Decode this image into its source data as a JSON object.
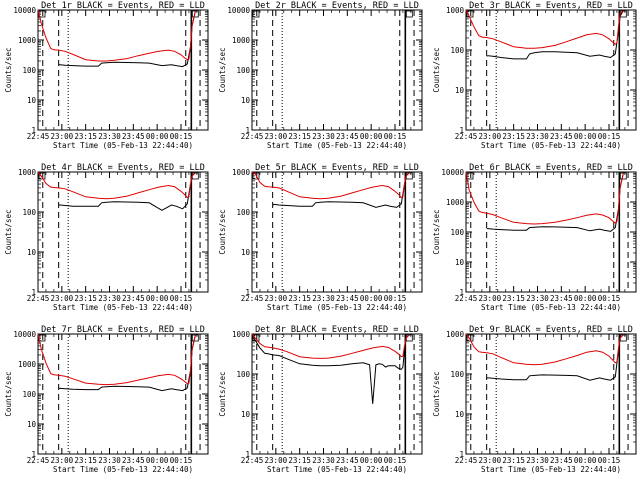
{
  "figure": {
    "x_tick_labels": [
      "22:45",
      "23:00",
      "23:15",
      "23:30",
      "23:45",
      "00:00",
      "00:15"
    ],
    "xlabel": "Start Time (05-Feb-13 22:44:40)",
    "ylabel": "Counts/sec",
    "series_colors": {
      "events": "#000000",
      "lld": "#e00000"
    },
    "background": "#ffffff"
  },
  "chart_data": [
    {
      "type": "line",
      "title": "Det 1r BLACK = Events, RED = LLD",
      "scale": "log",
      "yticks": [
        "1",
        "10",
        "100",
        "1000",
        "10000"
      ],
      "ylim": [
        1,
        10000
      ],
      "xlim_minutes": [
        0,
        100
      ],
      "series": [
        {
          "name": "Events",
          "x": [
            13,
            14,
            17,
            22,
            30,
            38,
            40,
            43,
            48,
            56,
            63,
            70,
            78,
            84,
            87,
            91,
            94,
            96,
            97,
            99
          ],
          "y": [
            150,
            150,
            145,
            140,
            135,
            135,
            170,
            175,
            180,
            178,
            175,
            170,
            140,
            150,
            140,
            130,
            160,
            600,
            3000,
            9000
          ]
        },
        {
          "name": "LLD",
          "x": [
            0,
            2,
            5,
            8,
            10,
            13,
            17,
            22,
            30,
            38,
            43,
            48,
            56,
            63,
            70,
            76,
            82,
            86,
            90,
            92,
            94,
            95,
            96,
            97,
            99
          ],
          "y": [
            10000,
            3600,
            1200,
            520,
            470,
            460,
            420,
            330,
            220,
            200,
            200,
            210,
            240,
            300,
            360,
            420,
            460,
            420,
            320,
            260,
            220,
            230,
            600,
            3000,
            9000
          ]
        }
      ]
    },
    {
      "type": "line",
      "title": "Det 2r BLACK = Events, RED = LLD",
      "scale": "log",
      "yticks": [
        "1",
        "10",
        "100",
        "1000",
        "10000"
      ],
      "ylim": [
        1,
        10000
      ],
      "xlim_minutes": [
        0,
        100
      ],
      "series": []
    },
    {
      "type": "line",
      "title": "Det 3r BLACK = Events, RED = LLD",
      "scale": "log",
      "yticks": [
        "1",
        "10",
        "100",
        "1000"
      ],
      "ylim": [
        1,
        1000
      ],
      "xlim_minutes": [
        0,
        100
      ],
      "series": [
        {
          "name": "Events",
          "x": [
            13,
            14,
            17,
            22,
            30,
            38,
            40,
            43,
            48,
            56,
            63,
            70,
            78,
            84,
            87,
            91,
            94,
            96,
            97,
            99
          ],
          "y": [
            70,
            72,
            70,
            65,
            60,
            60,
            80,
            85,
            90,
            90,
            88,
            85,
            70,
            75,
            70,
            65,
            80,
            300,
            700,
            950
          ]
        },
        {
          "name": "LLD",
          "x": [
            0,
            2,
            5,
            8,
            10,
            13,
            17,
            22,
            30,
            38,
            43,
            48,
            56,
            63,
            70,
            76,
            82,
            86,
            90,
            92,
            94,
            95,
            96,
            97,
            99
          ],
          "y": [
            1000,
            700,
            380,
            230,
            210,
            205,
            190,
            160,
            120,
            110,
            110,
            115,
            130,
            160,
            200,
            240,
            260,
            240,
            190,
            160,
            140,
            150,
            400,
            800,
            950
          ]
        }
      ]
    },
    {
      "type": "line",
      "title": "Det 4r BLACK = Events, RED = LLD",
      "scale": "log",
      "yticks": [
        "1",
        "10",
        "100",
        "1000"
      ],
      "ylim": [
        1,
        1000
      ],
      "xlim_minutes": [
        0,
        100
      ],
      "series": [
        {
          "name": "Events",
          "x": [
            13,
            14,
            17,
            22,
            30,
            38,
            40,
            43,
            48,
            56,
            63,
            70,
            78,
            84,
            87,
            91,
            94,
            96,
            97,
            99
          ],
          "y": [
            150,
            150,
            145,
            140,
            140,
            140,
            170,
            175,
            180,
            178,
            175,
            170,
            110,
            150,
            140,
            120,
            160,
            500,
            800,
            950
          ]
        },
        {
          "name": "LLD",
          "x": [
            0,
            2,
            5,
            8,
            10,
            13,
            17,
            22,
            30,
            38,
            43,
            48,
            56,
            63,
            70,
            76,
            82,
            86,
            90,
            92,
            94,
            95,
            96,
            97,
            99
          ],
          "y": [
            1000,
            800,
            520,
            420,
            410,
            400,
            380,
            320,
            240,
            220,
            215,
            220,
            250,
            300,
            360,
            420,
            460,
            430,
            330,
            280,
            230,
            240,
            500,
            800,
            950
          ]
        }
      ]
    },
    {
      "type": "line",
      "title": "Det 5r BLACK = Events, RED = LLD",
      "scale": "log",
      "yticks": [
        "1",
        "10",
        "100",
        "1000"
      ],
      "ylim": [
        1,
        1000
      ],
      "xlim_minutes": [
        0,
        100
      ],
      "series": [
        {
          "name": "Events",
          "x": [
            13,
            14,
            17,
            22,
            30,
            38,
            40,
            43,
            48,
            56,
            63,
            70,
            78,
            84,
            87,
            91,
            94,
            96,
            97,
            99
          ],
          "y": [
            150,
            155,
            150,
            145,
            140,
            140,
            170,
            175,
            180,
            178,
            175,
            170,
            130,
            150,
            140,
            130,
            160,
            500,
            800,
            950
          ]
        },
        {
          "name": "LLD",
          "x": [
            0,
            2,
            5,
            8,
            10,
            13,
            17,
            22,
            30,
            38,
            43,
            48,
            56,
            63,
            70,
            76,
            82,
            86,
            90,
            92,
            94,
            95,
            96,
            97,
            99
          ],
          "y": [
            1000,
            900,
            550,
            440,
            430,
            420,
            400,
            330,
            240,
            220,
            215,
            220,
            250,
            300,
            360,
            420,
            460,
            430,
            330,
            280,
            230,
            240,
            500,
            800,
            950
          ]
        }
      ]
    },
    {
      "type": "line",
      "title": "Det 6r BLACK = Events, RED = LLD",
      "scale": "log",
      "yticks": [
        "1",
        "10",
        "100",
        "1000",
        "10000"
      ],
      "ylim": [
        1,
        10000
      ],
      "xlim_minutes": [
        0,
        100
      ],
      "series": [
        {
          "name": "Events",
          "x": [
            13,
            14,
            17,
            22,
            30,
            38,
            40,
            43,
            48,
            56,
            63,
            70,
            78,
            84,
            87,
            91,
            94,
            96,
            97,
            99
          ],
          "y": [
            130,
            130,
            125,
            120,
            115,
            115,
            140,
            145,
            150,
            148,
            145,
            140,
            110,
            125,
            115,
            105,
            140,
            600,
            3000,
            9000
          ]
        },
        {
          "name": "LLD",
          "x": [
            0,
            2,
            5,
            8,
            10,
            13,
            17,
            22,
            30,
            38,
            43,
            48,
            56,
            63,
            70,
            76,
            82,
            86,
            90,
            92,
            94,
            95,
            96,
            97,
            99
          ],
          "y": [
            10000,
            2500,
            1000,
            500,
            450,
            420,
            380,
            300,
            210,
            190,
            185,
            190,
            210,
            250,
            300,
            360,
            400,
            370,
            300,
            240,
            200,
            220,
            600,
            3000,
            9000
          ]
        }
      ]
    },
    {
      "type": "line",
      "title": "Det 7r BLACK = Events, RED = LLD",
      "scale": "log",
      "yticks": [
        "1",
        "10",
        "100",
        "1000",
        "10000"
      ],
      "ylim": [
        1,
        10000
      ],
      "xlim_minutes": [
        0,
        100
      ],
      "series": [
        {
          "name": "Events",
          "x": [
            13,
            14,
            17,
            22,
            30,
            38,
            40,
            43,
            48,
            56,
            63,
            70,
            78,
            84,
            87,
            91,
            94,
            96,
            97,
            99
          ],
          "y": [
            150,
            155,
            150,
            145,
            140,
            140,
            170,
            175,
            180,
            178,
            175,
            170,
            130,
            150,
            140,
            130,
            160,
            600,
            3000,
            9000
          ]
        },
        {
          "name": "LLD",
          "x": [
            0,
            2,
            5,
            8,
            10,
            13,
            17,
            22,
            30,
            38,
            43,
            48,
            56,
            63,
            70,
            76,
            82,
            86,
            90,
            92,
            94,
            95,
            96,
            97,
            99
          ],
          "y": [
            10000,
            3200,
            1100,
            480,
            440,
            420,
            390,
            320,
            230,
            210,
            205,
            210,
            240,
            290,
            350,
            410,
            450,
            420,
            320,
            270,
            220,
            230,
            600,
            3000,
            9000
          ]
        }
      ]
    },
    {
      "type": "line",
      "title": "Det 8r BLACK = Events, RED = LLD",
      "scale": "log",
      "yticks": [
        "1",
        "10",
        "100",
        "1000"
      ],
      "ylim": [
        1,
        1000
      ],
      "xlim_minutes": [
        0,
        100
      ],
      "series": [
        {
          "name": "Events",
          "x": [
            0,
            2,
            5,
            8,
            10,
            13,
            17,
            22,
            30,
            38,
            43,
            48,
            56,
            63,
            70,
            74,
            76,
            78,
            80,
            82,
            84,
            86,
            90,
            92,
            94,
            95,
            96,
            97,
            99
          ],
          "y": [
            900,
            700,
            450,
            330,
            320,
            300,
            290,
            240,
            180,
            165,
            160,
            160,
            165,
            180,
            190,
            170,
            18,
            170,
            180,
            175,
            150,
            160,
            160,
            140,
            130,
            150,
            400,
            800,
            950
          ]
        },
        {
          "name": "LLD",
          "x": [
            0,
            2,
            5,
            8,
            10,
            13,
            17,
            22,
            30,
            38,
            43,
            48,
            56,
            63,
            70,
            76,
            82,
            86,
            90,
            92,
            94,
            95,
            96,
            97,
            99
          ],
          "y": [
            1000,
            800,
            580,
            480,
            470,
            450,
            420,
            360,
            270,
            250,
            245,
            250,
            280,
            330,
            390,
            450,
            490,
            460,
            370,
            320,
            270,
            280,
            500,
            800,
            950
          ]
        }
      ]
    },
    {
      "type": "line",
      "title": "Det 9r BLACK = Events, RED = LLD",
      "scale": "log",
      "yticks": [
        "1",
        "10",
        "100",
        "1000"
      ],
      "ylim": [
        1,
        1000
      ],
      "xlim_minutes": [
        0,
        100
      ],
      "series": [
        {
          "name": "Events",
          "x": [
            13,
            14,
            17,
            22,
            30,
            38,
            40,
            43,
            48,
            56,
            63,
            70,
            78,
            84,
            87,
            91,
            94,
            96,
            97,
            99
          ],
          "y": [
            80,
            80,
            78,
            75,
            72,
            72,
            90,
            92,
            95,
            94,
            92,
            90,
            70,
            80,
            75,
            70,
            85,
            400,
            800,
            950
          ]
        },
        {
          "name": "LLD",
          "x": [
            0,
            2,
            5,
            8,
            10,
            13,
            17,
            22,
            30,
            38,
            43,
            48,
            56,
            63,
            70,
            76,
            82,
            86,
            90,
            92,
            94,
            95,
            96,
            97,
            99
          ],
          "y": [
            1000,
            800,
            480,
            360,
            350,
            340,
            320,
            260,
            190,
            175,
            170,
            175,
            200,
            240,
            290,
            350,
            380,
            350,
            280,
            230,
            190,
            200,
            450,
            800,
            950
          ]
        }
      ]
    }
  ]
}
